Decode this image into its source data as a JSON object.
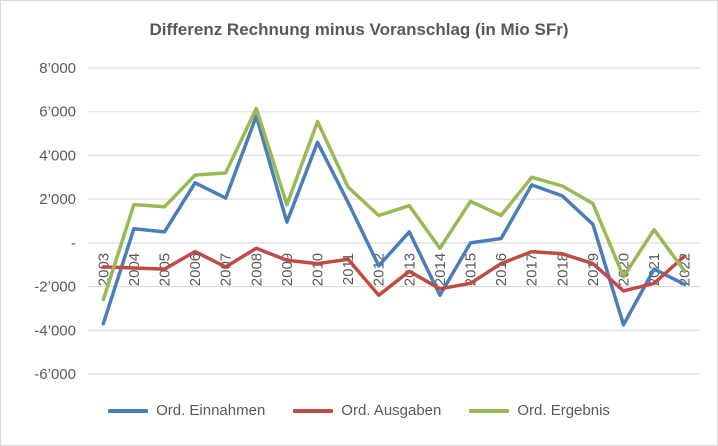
{
  "chart_data": {
    "type": "line",
    "title": "Differenz Rechnung minus Voranschlag (in Mio SFr)",
    "xlabel": "",
    "ylabel": "",
    "ylim": [
      -6000,
      8000
    ],
    "y_ticks": [
      {
        "value": 8000,
        "label": "8’000"
      },
      {
        "value": 6000,
        "label": "6’000"
      },
      {
        "value": 4000,
        "label": "4’000"
      },
      {
        "value": 2000,
        "label": "2’000"
      },
      {
        "value": 0,
        "label": "-"
      },
      {
        "value": -2000,
        "label": "-2’000"
      },
      {
        "value": -4000,
        "label": "-4’000"
      },
      {
        "value": -6000,
        "label": "-6’000"
      }
    ],
    "grid": true,
    "legend_position": "bottom",
    "categories": [
      "2003",
      "2004",
      "2005",
      "2006",
      "2007",
      "2008",
      "2009",
      "2010",
      "2011",
      "2012",
      "2013",
      "2014",
      "2015",
      "2016",
      "2017",
      "2018",
      "2019",
      "2020",
      "2021",
      "2022"
    ],
    "series": [
      {
        "name": "Ord. Einnahmen",
        "color": "#4a7ebb",
        "values": [
          -3700,
          650,
          500,
          2750,
          2050,
          5800,
          950,
          4600,
          1850,
          -1050,
          500,
          -2400,
          0,
          200,
          2650,
          2150,
          850,
          -3750,
          -1200,
          -1900
        ]
      },
      {
        "name": "Ord. Ausgaben",
        "color": "#be4b48",
        "values": [
          -1100,
          -1150,
          -1200,
          -400,
          -1100,
          -250,
          -800,
          -950,
          -750,
          -2400,
          -1300,
          -2100,
          -1850,
          -950,
          -400,
          -500,
          -950,
          -2200,
          -1850,
          -600
        ]
      },
      {
        "name": "Ord. Ergebnis",
        "color": "#98b954",
        "values": [
          -2600,
          1750,
          1650,
          3100,
          3200,
          6150,
          1750,
          5550,
          2550,
          1250,
          1700,
          -250,
          1900,
          1250,
          3000,
          2600,
          1800,
          -1550,
          600,
          -1300
        ]
      }
    ]
  }
}
